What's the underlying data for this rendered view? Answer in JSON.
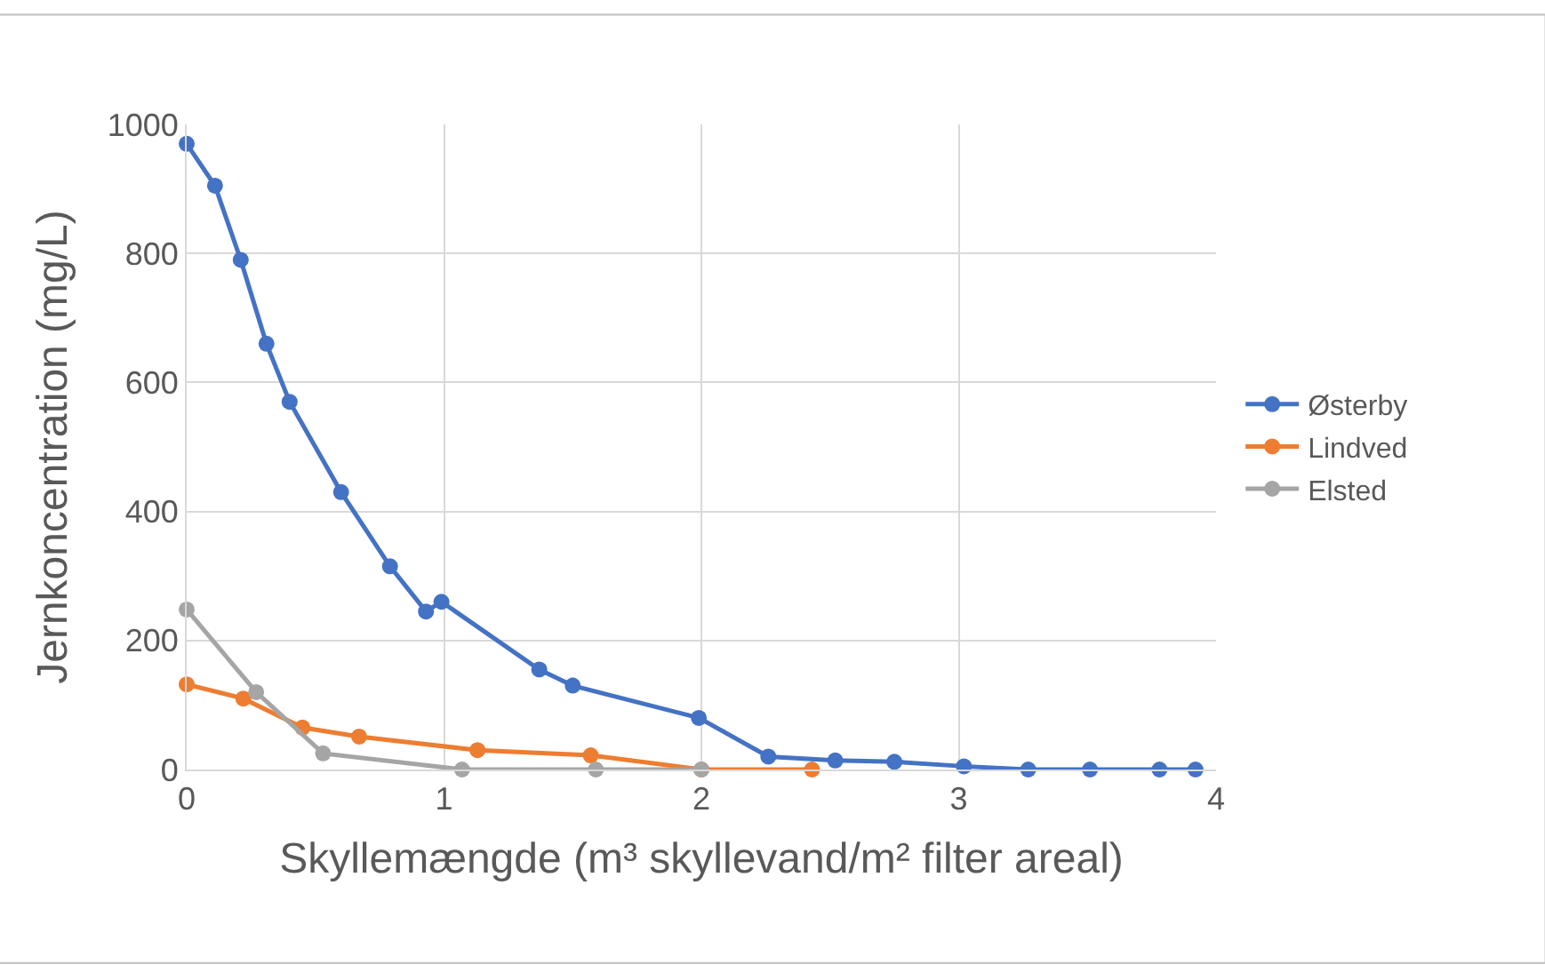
{
  "chart_data": {
    "type": "line",
    "xlabel": "Skyllemængde (m³ skyllevand/m² filter areal)",
    "ylabel": "Jernkoncentration (mg/L)",
    "xlim": [
      0,
      4
    ],
    "xticks": [
      0,
      1,
      2,
      3,
      4
    ],
    "ylim": [
      0,
      1000
    ],
    "yticks": [
      0,
      200,
      400,
      600,
      800,
      1000
    ],
    "grid": true,
    "legend": "right",
    "marker": "circle",
    "line_style": "solid",
    "series": [
      {
        "name": "Østerby",
        "color": "#4472c4",
        "x": [
          0,
          0.11,
          0.21,
          0.31,
          0.4,
          0.6,
          0.79,
          0.93,
          0.99,
          1.37,
          1.5,
          1.99,
          2.26,
          2.52,
          2.75,
          3.02,
          3.27,
          3.51,
          3.78,
          3.92
        ],
        "values": [
          970,
          905,
          790,
          660,
          570,
          430,
          315,
          245,
          260,
          155,
          130,
          80,
          20,
          14,
          12,
          5,
          0,
          0,
          0,
          0
        ]
      },
      {
        "name": "Lindved",
        "color": "#ed7d31",
        "x": [
          0,
          0.22,
          0.45,
          0.67,
          1.13,
          1.57,
          2.0,
          2.43
        ],
        "values": [
          132,
          110,
          65,
          51,
          30,
          22,
          0,
          0
        ]
      },
      {
        "name": "Elsted",
        "color": "#a5a5a5",
        "x": [
          0,
          0.27,
          0.53,
          1.07,
          1.59,
          2.0
        ],
        "values": [
          248,
          120,
          25,
          0,
          0,
          0
        ]
      }
    ]
  }
}
